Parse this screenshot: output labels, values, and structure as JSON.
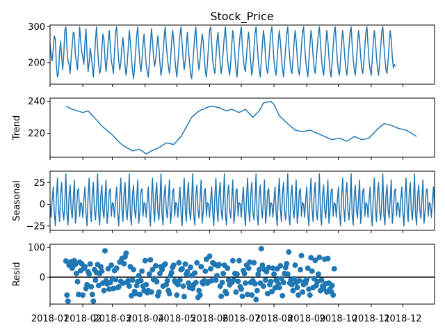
{
  "chart_data": [
    {
      "type": "line",
      "panel": "observed",
      "title": "Stock_Price",
      "ylabel": "",
      "xlim": [
        "2018-01-01",
        "2018-12-31"
      ],
      "ylim": [
        140,
        305
      ],
      "yticks": [
        200,
        300
      ],
      "ytick_labels": [
        "200",
        "300"
      ],
      "series": [
        {
          "x_start": "2018-01-01",
          "x_step_days": 1,
          "values": [
            252,
            220,
            205,
            238,
            275,
            265,
            190,
            160,
            170,
            230,
            260,
            215,
            180,
            225,
            290,
            300,
            240,
            205,
            195,
            170,
            215,
            250,
            285,
            280,
            220,
            200,
            180,
            240,
            300,
            260,
            230,
            215,
            195,
            255,
            295,
            225,
            175,
            200,
            240,
            220,
            190,
            160,
            205,
            265,
            300,
            240,
            195,
            170,
            185,
            235,
            280,
            265,
            210,
            175,
            210,
            255,
            290,
            250,
            205,
            190,
            170,
            230,
            285,
            300,
            250,
            205,
            180,
            200,
            245,
            270,
            230,
            190,
            165,
            195,
            240,
            290,
            260,
            215,
            180,
            155,
            185,
            230,
            275,
            300,
            245,
            200,
            175,
            205,
            250,
            280,
            235,
            195,
            175,
            160,
            200,
            250,
            295,
            260,
            215,
            190,
            210,
            240,
            275,
            245,
            200,
            165,
            185,
            230,
            270,
            300,
            250,
            215,
            190,
            170,
            205,
            255,
            290,
            265,
            220,
            185,
            160,
            195,
            240,
            280,
            300,
            255,
            210,
            180,
            205,
            245,
            285,
            240,
            200,
            170,
            155,
            190,
            235,
            275,
            300,
            245,
            205,
            180,
            210,
            250,
            280,
            260,
            215,
            175,
            160,
            200,
            245,
            290,
            300,
            255,
            205,
            185,
            170,
            215,
            260,
            285,
            240,
            200,
            170,
            195,
            235,
            275,
            300,
            250,
            210,
            185,
            165,
            200,
            250,
            290,
            265,
            220,
            180,
            160,
            205,
            245,
            280,
            300,
            250,
            210,
            185,
            175,
            220,
            260,
            285,
            240,
            200,
            165,
            190,
            235,
            280,
            300,
            255,
            210,
            180,
            160,
            205,
            250,
            290,
            265,
            215,
            185,
            170,
            200,
            245,
            285,
            300,
            250,
            205,
            180,
            165,
            210,
            255,
            290,
            260,
            215,
            185,
            160,
            200,
            240,
            280,
            300,
            250,
            210,
            180,
            170,
            210,
            255,
            290,
            260,
            215,
            180,
            165,
            200,
            245,
            285,
            300,
            250,
            205,
            180,
            160,
            205,
            250,
            290,
            265,
            220,
            185,
            170,
            205,
            245,
            280,
            300,
            255,
            210,
            180,
            165,
            205,
            250,
            290,
            260,
            215,
            180,
            160,
            200,
            245,
            285,
            300,
            250,
            205,
            175,
            165,
            210,
            255,
            290,
            260,
            215,
            185,
            165,
            200,
            245,
            285,
            300,
            250,
            210,
            180,
            165,
            205,
            250,
            290,
            265,
            220,
            185,
            170,
            200,
            245,
            285,
            300,
            250,
            205,
            180,
            165,
            210,
            255,
            290,
            260,
            215,
            185,
            165,
            200,
            245,
            285,
            300,
            250,
            210,
            180,
            170,
            205,
            250,
            290,
            265,
            215,
            185,
            195,
            190
          ]
        }
      ]
    },
    {
      "type": "line",
      "panel": "trend",
      "title": "",
      "ylabel": "Trend",
      "xlim": [
        "2018-01-01",
        "2018-12-31"
      ],
      "ylim": [
        205,
        242
      ],
      "yticks": [
        220,
        240
      ],
      "ytick_labels": [
        "220",
        "240"
      ],
      "series": [
        {
          "x": [
            "2018-01-16",
            "2018-01-22",
            "2018-02-01",
            "2018-02-06",
            "2018-02-13",
            "2018-02-20",
            "2018-03-01",
            "2018-03-08",
            "2018-03-12",
            "2018-03-20",
            "2018-03-27",
            "2018-04-02",
            "2018-04-07",
            "2018-04-14",
            "2018-04-21",
            "2018-04-28",
            "2018-05-05",
            "2018-05-10",
            "2018-05-15",
            "2018-05-22",
            "2018-05-29",
            "2018-06-03",
            "2018-06-10",
            "2018-06-17",
            "2018-06-22",
            "2018-06-29",
            "2018-07-05",
            "2018-07-12",
            "2018-07-18",
            "2018-07-22",
            "2018-07-29",
            "2018-08-01",
            "2018-08-06",
            "2018-08-14",
            "2018-08-21",
            "2018-08-28",
            "2018-09-04",
            "2018-09-11",
            "2018-09-18",
            "2018-09-25",
            "2018-10-02",
            "2018-10-09",
            "2018-10-16",
            "2018-10-23",
            "2018-10-30",
            "2018-11-06",
            "2018-11-13",
            "2018-11-20",
            "2018-11-27",
            "2018-12-04",
            "2018-12-09",
            "2018-12-14"
          ],
          "values": [
            237,
            235,
            233,
            234,
            229,
            224,
            219,
            214,
            212,
            209,
            210,
            207,
            209,
            211,
            214,
            213,
            218,
            224,
            230,
            234,
            236,
            237,
            236,
            234,
            235,
            233,
            235,
            230,
            234,
            239,
            240,
            238,
            231,
            226,
            222,
            221,
            222,
            220,
            218,
            216,
            217,
            215,
            218,
            216,
            217,
            222,
            226,
            225,
            223,
            222,
            220,
            218
          ]
        }
      ]
    },
    {
      "type": "line",
      "panel": "seasonal",
      "title": "",
      "ylabel": "Seasonal",
      "xlim": [
        "2018-01-01",
        "2018-12-31"
      ],
      "ylim": [
        -30,
        38
      ],
      "yticks": [
        -25,
        0,
        25
      ],
      "ytick_labels": [
        "−25",
        "0",
        "25"
      ],
      "series": [
        {
          "x_start": "2018-01-01",
          "x_step_days": 1,
          "period": 30,
          "period_values": [
            0,
            -15,
            5,
            20,
            -10,
            -25,
            8,
            30,
            -5,
            -20,
            12,
            25,
            -8,
            -18,
            3,
            35,
            -12,
            -24,
            10,
            22,
            -6,
            -16,
            6,
            28,
            -22,
            -9,
            15,
            18,
            -14,
            2
          ]
        }
      ]
    },
    {
      "type": "scatter",
      "panel": "resid",
      "title": "",
      "ylabel": "Resid",
      "xlabel": "",
      "xlim": [
        "2018-01-01",
        "2018-12-31"
      ],
      "ylim": [
        -90,
        110
      ],
      "yticks": [
        0,
        100
      ],
      "ytick_labels": [
        "0",
        "100"
      ],
      "xticks": [
        "2018-01-01",
        "2018-02-01",
        "2018-03-01",
        "2018-04-01",
        "2018-05-01",
        "2018-06-01",
        "2018-07-01",
        "2018-08-01",
        "2018-09-01",
        "2018-10-01",
        "2018-11-01",
        "2018-12-01"
      ],
      "xtick_labels": [
        "2018-01",
        "2018-02",
        "2018-03",
        "2018-04",
        "2018-05",
        "2018-06",
        "2018-07",
        "2018-08",
        "2018-09",
        "2018-10",
        "2018-11",
        "2018-12"
      ],
      "series": [
        {
          "x_start": "2018-01-16",
          "x_step_days": 1,
          "values": [
            54,
            -60,
            -80,
            40,
            48,
            52,
            30,
            38,
            55,
            43,
            12,
            -15,
            -58,
            50,
            22,
            45,
            -60,
            30,
            35,
            -38,
            -25,
            18,
            10,
            44,
            -32,
            -58,
            -80,
            25,
            -10,
            15,
            42,
            -28,
            12,
            35,
            20,
            -20,
            -45,
            88,
            -12,
            -22,
            28,
            -40,
            -18,
            40,
            -5,
            -38,
            22,
            -8,
            30,
            -35,
            -32,
            50,
            -14,
            62,
            -20,
            45,
            68,
            80,
            -18,
            -12,
            -30,
            35,
            -62,
            -10,
            25,
            -48,
            -55,
            -28,
            -15,
            5,
            -58,
            -12,
            20,
            -30,
            -45,
            55,
            -25,
            -52,
            -45,
            10,
            58,
            -50,
            25,
            -8,
            -5,
            38,
            -15,
            -62,
            -50,
            12,
            35,
            25,
            -30,
            40,
            44,
            -25,
            -12,
            -45,
            -55,
            5,
            15,
            33,
            40,
            -12,
            -18,
            -60,
            -25,
            48,
            -10,
            25,
            28,
            -30,
            -65,
            44,
            10,
            18,
            -20,
            -35,
            33,
            5,
            -38,
            -25,
            14,
            -18,
            48,
            -68,
            -45,
            -60,
            35,
            -18,
            -22,
            -12,
            20,
            60,
            -20,
            -15,
            70,
            28,
            -12,
            48,
            46,
            42,
            -10,
            5,
            38,
            42,
            -30,
            -64,
            -18,
            12,
            40,
            -48,
            -55,
            30,
            -10,
            -26,
            -18,
            -18,
            55,
            -10,
            12,
            -50,
            10,
            -14,
            55,
            -32,
            -40,
            -64,
            22,
            12,
            -20,
            40,
            -58,
            30,
            50,
            -18,
            -60,
            -12,
            48,
            -22,
            -75,
            -45,
            10,
            25,
            -20,
            95,
            40,
            -30,
            25,
            -10,
            18,
            -55,
            32,
            -25,
            -15,
            -48,
            30,
            10,
            -36,
            -10,
            28,
            -22,
            -35,
            38,
            -5,
            -62,
            -18,
            12,
            32,
            45,
            10,
            84,
            -20,
            -10,
            -25,
            -45,
            -5,
            40,
            -18,
            -35,
            -60,
            -12,
            25,
            72,
            -50,
            -25,
            -15,
            -20,
            -8,
            30,
            -40,
            -60,
            65,
            20,
            -35,
            -5,
            56,
            -28,
            -15,
            10,
            66,
            -45,
            -10,
            -30,
            -38,
            60,
            -22,
            -50,
            62,
            -20,
            -40,
            -48,
            -28,
            -60,
            28
          ]
        }
      ]
    }
  ]
}
